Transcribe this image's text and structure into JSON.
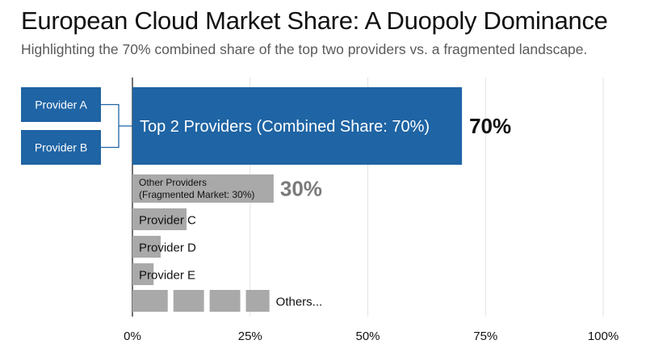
{
  "title": "European Cloud Market Share: A Duopoly Dominance",
  "subtitle": "Highlighting the 70% combined share of the top two providers vs. a fragmented landscape.",
  "colors": {
    "highlight": "#1f64a4",
    "muted": "#a9a9a9",
    "gridline": "#e3e3e3",
    "axis": "#444444",
    "text": "#111111",
    "muted_label": "#7a7a7a"
  },
  "chart_data": {
    "type": "bar",
    "orientation": "horizontal",
    "xlim": [
      0,
      100
    ],
    "xticks": [
      "0%",
      "25%",
      "50%",
      "75%",
      "100%"
    ],
    "grid": true,
    "bars": [
      {
        "label": "Top 2 Providers (Combined Share: 70%)",
        "value": 70,
        "value_label": "70%",
        "style": "highlight"
      },
      {
        "label": "Other Providers\n(Fragmented Market: 30%)",
        "value": 30,
        "value_label": "30%",
        "style": "muted"
      },
      {
        "label": "Provider C",
        "value": 11.5,
        "style": "muted"
      },
      {
        "label": "Provider D",
        "value": 6,
        "style": "muted"
      },
      {
        "label": "Provider E",
        "value": 4.5,
        "style": "muted"
      }
    ],
    "others": {
      "label": "Others...",
      "segments": [
        7.5,
        6.5,
        6.5,
        5
      ]
    },
    "group_labels": [
      "Provider A",
      "Provider B"
    ]
  }
}
